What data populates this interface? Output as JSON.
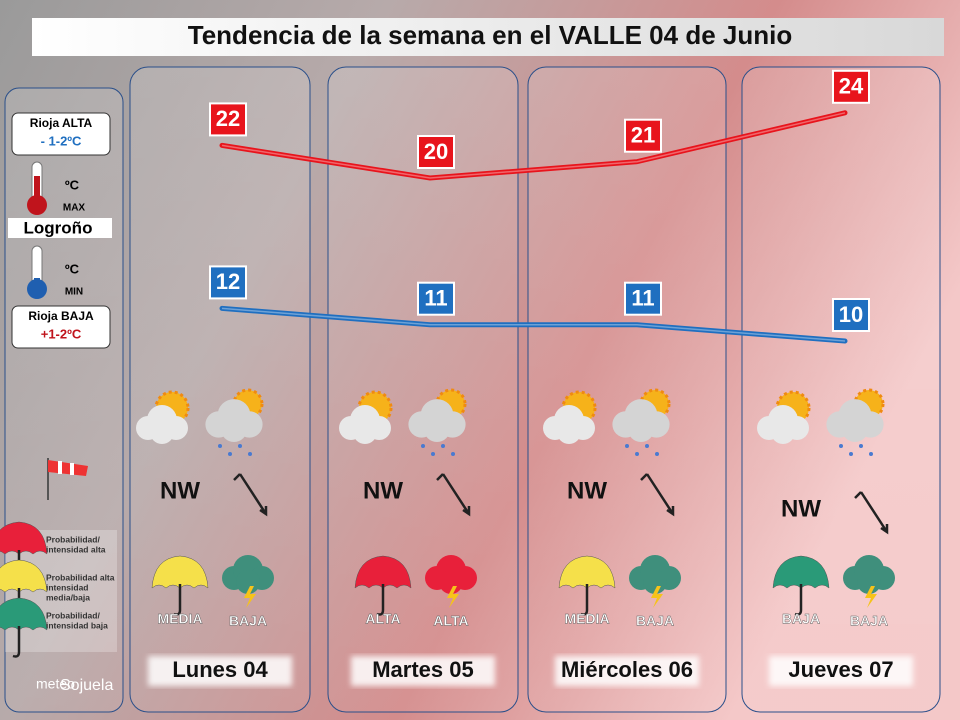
{
  "chart_data": {
    "type": "line",
    "title": "Tendencia de la semana en el VALLE 04 de Junio",
    "categories": [
      "Lunes 04",
      "Martes 05",
      "Miércoles 06",
      "Jueves 07"
    ],
    "series": [
      {
        "name": "MAX",
        "color": "#e8141c",
        "values": [
          22,
          20,
          21,
          24
        ]
      },
      {
        "name": "MIN",
        "color": "#1f6fc0",
        "values": [
          12,
          11,
          11,
          10
        ]
      }
    ],
    "ylim": [
      0,
      30
    ]
  },
  "sidebar": {
    "unit": "ºC",
    "max_label": "Rioja ALTA",
    "max_delta": "- 1-2ºC",
    "city": "Logroño",
    "min_label": "Rioja BAJA",
    "min_delta": "+1-2ºC",
    "legend": [
      {
        "lines": [
          "Probabilidad/",
          "intensidad alta"
        ],
        "color": "#e8203a"
      },
      {
        "lines": [
          "Probabilidad alta",
          "intensidad",
          "media/baja"
        ],
        "color": "#f5e04a"
      },
      {
        "lines": [
          "Probabilidad/",
          "intensidad baja"
        ],
        "color": "#2a9a78"
      }
    ]
  },
  "days": [
    {
      "wind": "NW",
      "rain": {
        "label": "MEDIA",
        "color": "#f5e04a"
      },
      "storm": {
        "label": "BAJA",
        "color": "#3f8f7c"
      }
    },
    {
      "wind": "NW",
      "rain": {
        "label": "ALTA",
        "color": "#e8203a"
      },
      "storm": {
        "label": "ALTA",
        "color": "#e8203a"
      }
    },
    {
      "wind": "NW",
      "rain": {
        "label": "MEDIA",
        "color": "#f5e04a"
      },
      "storm": {
        "label": "BAJA",
        "color": "#3f8f7c"
      }
    },
    {
      "wind": "NW",
      "rain": {
        "label": "BAJA",
        "color": "#2a9a78"
      },
      "storm": {
        "label": "BAJA",
        "color": "#3f8f7c"
      }
    }
  ],
  "logo": [
    "meteo",
    "Sojuela"
  ]
}
